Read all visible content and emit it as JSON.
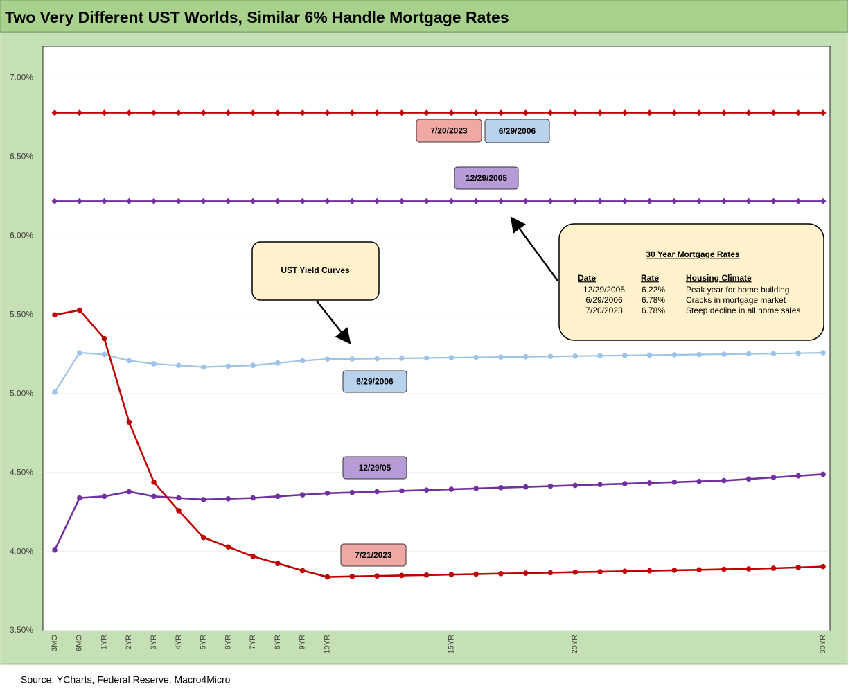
{
  "chart_data": {
    "type": "line",
    "title": "Two Very Different UST Worlds, Similar 6% Handle Mortgage Rates",
    "source": "Source: YCharts, Federal Reserve, Macro4Micro",
    "categories": [
      "3MO",
      "6MO",
      "1YR",
      "2YR",
      "3YR",
      "4YR",
      "5YR",
      "6YR",
      "7YR",
      "8YR",
      "9YR",
      "10YR",
      null,
      null,
      null,
      null,
      "15YR",
      null,
      null,
      null,
      null,
      "20YR",
      null,
      null,
      null,
      null,
      null,
      null,
      null,
      null,
      null,
      "30YR"
    ],
    "ylim": [
      3.5,
      7.2
    ],
    "yticks": [
      {
        "value": 3.5,
        "label": "3.50%"
      },
      {
        "value": 4.0,
        "label": "4.00%"
      },
      {
        "value": 4.5,
        "label": "4.50%"
      },
      {
        "value": 5.0,
        "label": "5.00%"
      },
      {
        "value": 5.5,
        "label": "5.50%"
      },
      {
        "value": 6.0,
        "label": "6.00%"
      },
      {
        "value": 6.5,
        "label": "6.50%"
      },
      {
        "value": 7.0,
        "label": "7.00%"
      }
    ],
    "grid": true,
    "series": [
      {
        "name": "12/29/05",
        "color": "#7030a0",
        "marker": "circle",
        "values": [
          4.01,
          4.34,
          4.35,
          4.38,
          4.35,
          4.34,
          4.33,
          4.335,
          4.34,
          4.35,
          4.36,
          4.37,
          4.375,
          4.38,
          4.385,
          4.39,
          4.395,
          4.4,
          4.405,
          4.41,
          4.415,
          4.42,
          4.425,
          4.43,
          4.435,
          4.44,
          4.445,
          4.45,
          4.46,
          4.47,
          4.48,
          4.49
        ]
      },
      {
        "name": "6/29/2006",
        "color": "#9dc3e6",
        "marker": "circle",
        "values": [
          5.01,
          5.26,
          5.25,
          5.21,
          5.19,
          5.18,
          5.17,
          5.175,
          5.18,
          5.195,
          5.21,
          5.22,
          5.221,
          5.223,
          5.225,
          5.227,
          5.229,
          5.231,
          5.233,
          5.235,
          5.237,
          5.239,
          5.241,
          5.243,
          5.245,
          5.247,
          5.249,
          5.251,
          5.253,
          5.255,
          5.257,
          5.26
        ]
      },
      {
        "name": "7/21/2023",
        "color": "#c00000",
        "marker": "circle",
        "values": [
          5.5,
          5.53,
          5.35,
          4.82,
          4.44,
          4.26,
          4.09,
          4.03,
          3.97,
          3.925,
          3.88,
          3.84,
          3.843,
          3.846,
          3.849,
          3.852,
          3.855,
          3.858,
          3.861,
          3.864,
          3.867,
          3.87,
          3.873,
          3.876,
          3.879,
          3.882,
          3.885,
          3.888,
          3.891,
          3.895,
          3.9,
          3.905
        ]
      },
      {
        "name": "6/29/2006",
        "color": "#9dc3e6",
        "marker": "none",
        "values": [
          6.78,
          6.78,
          6.78,
          6.78,
          6.78,
          6.78,
          6.78,
          6.78,
          6.78,
          6.78,
          6.78,
          6.78,
          6.78,
          6.78,
          6.78,
          6.78,
          6.78,
          6.78,
          6.78,
          6.78,
          6.78,
          6.78,
          6.78,
          6.78,
          6.78,
          6.78,
          6.78,
          6.78,
          6.78,
          6.78,
          6.78,
          6.78
        ]
      },
      {
        "name": "7/20/2023",
        "color": "#c00000",
        "marker": "diamond",
        "values": [
          6.78,
          6.78,
          6.78,
          6.78,
          6.78,
          6.78,
          6.78,
          6.78,
          6.78,
          6.78,
          6.78,
          6.78,
          6.78,
          6.78,
          6.78,
          6.78,
          6.78,
          6.78,
          6.78,
          6.78,
          6.78,
          6.78,
          6.78,
          6.78,
          6.78,
          6.78,
          6.78,
          6.78,
          6.78,
          6.78,
          6.78,
          6.78
        ]
      },
      {
        "name": "12/29/2005",
        "color": "#7030a0",
        "marker": "diamond",
        "values": [
          6.22,
          6.22,
          6.22,
          6.22,
          6.22,
          6.22,
          6.22,
          6.22,
          6.22,
          6.22,
          6.22,
          6.22,
          6.22,
          6.22,
          6.22,
          6.22,
          6.22,
          6.22,
          6.22,
          6.22,
          6.22,
          6.22,
          6.22,
          6.22,
          6.22,
          6.22,
          6.22,
          6.22,
          6.22,
          6.22,
          6.22,
          6.22
        ]
      }
    ],
    "annotations": [
      "UST Yield Curves"
    ],
    "mortgage_table": {
      "title": "30 Year Mortgage Rates",
      "columns": [
        "Date",
        "Rate",
        "Housing Climate"
      ],
      "rows": [
        [
          "12/29/2005",
          "6.22%",
          "Peak year for home building"
        ],
        [
          "6/29/2006",
          "6.78%",
          "Cracks in mortgage market"
        ],
        [
          "7/20/2023",
          "6.78%",
          "Steep decline in all home sales"
        ]
      ]
    }
  }
}
